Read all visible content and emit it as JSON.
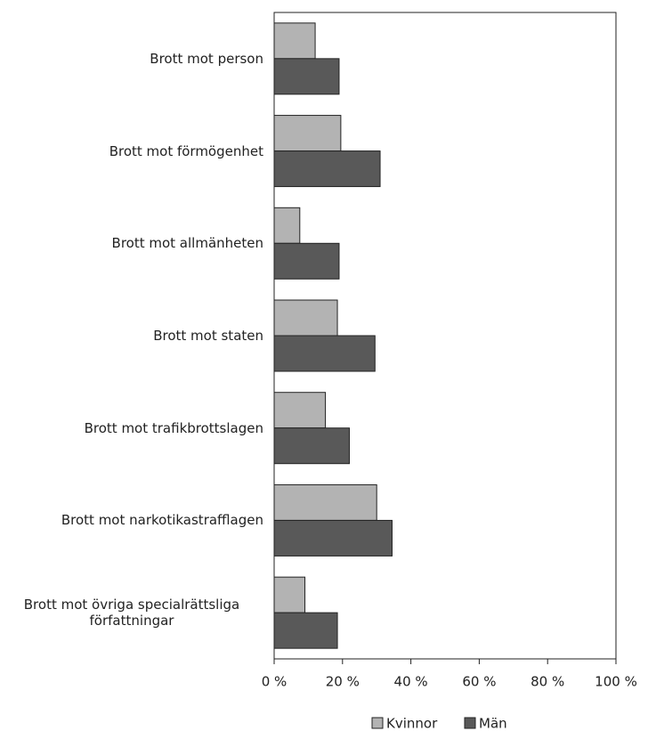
{
  "chart_data": {
    "type": "barh",
    "categories": [
      "Brott mot person",
      "Brott mot förmögenhet",
      "Brott mot allmänheten",
      "Brott mot staten",
      "Brott mot trafikbrottslagen",
      "Brott mot narkotikastrafflagen",
      "Brott mot övriga specialrättsliga författningar"
    ],
    "series": [
      {
        "name": "Kvinnor",
        "color": "#b3b3b3",
        "values": [
          12,
          19.5,
          7.5,
          18.5,
          15,
          30,
          9
        ]
      },
      {
        "name": "Män",
        "color": "#595959",
        "values": [
          19,
          31,
          19,
          29.5,
          22,
          34.5,
          18.5
        ]
      }
    ],
    "xlim": [
      0,
      100
    ],
    "xticks": [
      {
        "value": 0,
        "label": "0 %"
      },
      {
        "value": 20,
        "label": "20 %"
      },
      {
        "value": 40,
        "label": "40 %"
      },
      {
        "value": 60,
        "label": "60 %"
      },
      {
        "value": 80,
        "label": "80 %"
      },
      {
        "value": 100,
        "label": "100 %"
      }
    ],
    "grid": false,
    "legend": "bottom"
  }
}
